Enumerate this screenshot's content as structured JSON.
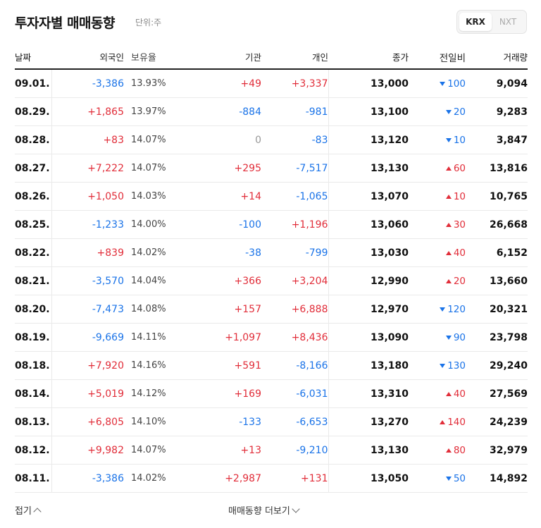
{
  "header": {
    "title": "투자자별 매매동향",
    "unit": "단위:주"
  },
  "market_toggle": {
    "krx": "KRX",
    "nxt": "NXT",
    "selected": "KRX"
  },
  "columns": {
    "date": "날짜",
    "foreign": "외국인",
    "holding": "보유율",
    "institution": "기관",
    "individual": "개인",
    "close": "종가",
    "change": "전일비",
    "volume": "거래량"
  },
  "rows": [
    {
      "date": "09.01.",
      "foreign": "-3,386",
      "holding": "13.93%",
      "institution": "+49",
      "individual": "+3,337",
      "close": "13,000",
      "change": "100",
      "dir": "down",
      "volume": "9,094"
    },
    {
      "date": "08.29.",
      "foreign": "+1,865",
      "holding": "13.97%",
      "institution": "-884",
      "individual": "-981",
      "close": "13,100",
      "change": "20",
      "dir": "down",
      "volume": "9,283"
    },
    {
      "date": "08.28.",
      "foreign": "+83",
      "holding": "14.07%",
      "institution": "0",
      "individual": "-83",
      "close": "13,120",
      "change": "10",
      "dir": "down",
      "volume": "3,847"
    },
    {
      "date": "08.27.",
      "foreign": "+7,222",
      "holding": "14.07%",
      "institution": "+295",
      "individual": "-7,517",
      "close": "13,130",
      "change": "60",
      "dir": "up",
      "volume": "13,816"
    },
    {
      "date": "08.26.",
      "foreign": "+1,050",
      "holding": "14.03%",
      "institution": "+14",
      "individual": "-1,065",
      "close": "13,070",
      "change": "10",
      "dir": "up",
      "volume": "10,765"
    },
    {
      "date": "08.25.",
      "foreign": "-1,233",
      "holding": "14.00%",
      "institution": "-100",
      "individual": "+1,196",
      "close": "13,060",
      "change": "30",
      "dir": "up",
      "volume": "26,668"
    },
    {
      "date": "08.22.",
      "foreign": "+839",
      "holding": "14.02%",
      "institution": "-38",
      "individual": "-799",
      "close": "13,030",
      "change": "40",
      "dir": "up",
      "volume": "6,152"
    },
    {
      "date": "08.21.",
      "foreign": "-3,570",
      "holding": "14.04%",
      "institution": "+366",
      "individual": "+3,204",
      "close": "12,990",
      "change": "20",
      "dir": "up",
      "volume": "13,660"
    },
    {
      "date": "08.20.",
      "foreign": "-7,473",
      "holding": "14.08%",
      "institution": "+157",
      "individual": "+6,888",
      "close": "12,970",
      "change": "120",
      "dir": "down",
      "volume": "20,321"
    },
    {
      "date": "08.19.",
      "foreign": "-9,669",
      "holding": "14.11%",
      "institution": "+1,097",
      "individual": "+8,436",
      "close": "13,090",
      "change": "90",
      "dir": "down",
      "volume": "23,798"
    },
    {
      "date": "08.18.",
      "foreign": "+7,920",
      "holding": "14.16%",
      "institution": "+591",
      "individual": "-8,166",
      "close": "13,180",
      "change": "130",
      "dir": "down",
      "volume": "29,240"
    },
    {
      "date": "08.14.",
      "foreign": "+5,019",
      "holding": "14.12%",
      "institution": "+169",
      "individual": "-6,031",
      "close": "13,310",
      "change": "40",
      "dir": "up",
      "volume": "27,569"
    },
    {
      "date": "08.13.",
      "foreign": "+6,805",
      "holding": "14.10%",
      "institution": "-133",
      "individual": "-6,653",
      "close": "13,270",
      "change": "140",
      "dir": "up",
      "volume": "24,239"
    },
    {
      "date": "08.12.",
      "foreign": "+9,982",
      "holding": "14.07%",
      "institution": "+13",
      "individual": "-9,210",
      "close": "13,130",
      "change": "80",
      "dir": "up",
      "volume": "32,979"
    },
    {
      "date": "08.11.",
      "foreign": "-3,386",
      "holding": "14.02%",
      "institution": "+2,987",
      "individual": "+131",
      "close": "13,050",
      "change": "50",
      "dir": "down",
      "volume": "14,892"
    }
  ],
  "footer": {
    "fold_label": "접기",
    "more_label": "매매동향 더보기"
  },
  "colors": {
    "up": "#e12d39",
    "down": "#1a73e8",
    "neutral": "#999999"
  }
}
